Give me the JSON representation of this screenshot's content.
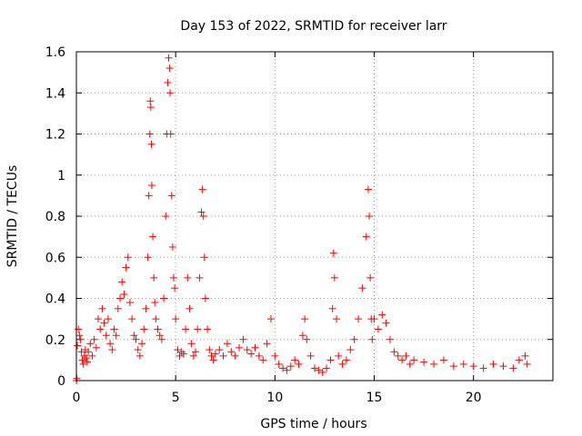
{
  "chart_data": {
    "type": "scatter",
    "title": "Day 153 of 2022, SRMTID for receiver larr",
    "xlabel": "GPS time / hours",
    "ylabel": "SRMTID / TECUs",
    "xlim": [
      0,
      24
    ],
    "ylim": [
      0,
      1.6
    ],
    "x_ticks": [
      0,
      5,
      10,
      15,
      20
    ],
    "y_ticks": [
      0,
      0.2,
      0.4,
      0.6,
      0.8,
      1.0,
      1.2,
      1.4,
      1.6
    ],
    "x_tick_labels": [
      "0",
      "5",
      "10",
      "15",
      "20"
    ],
    "y_tick_labels": [
      "0",
      "0.2",
      "0.4",
      "0.6",
      "0.8",
      "1",
      "1.2",
      "1.4",
      "1.6"
    ],
    "grid": true,
    "marker": "plus",
    "color": "#ff0000",
    "series": [
      {
        "name": "SRMTID",
        "x": [
          0.0,
          0.02,
          0.05,
          0.1,
          0.15,
          0.2,
          0.25,
          0.3,
          0.35,
          0.4,
          0.45,
          0.5,
          0.55,
          0.6,
          0.7,
          0.8,
          0.9,
          1.0,
          1.1,
          1.2,
          1.3,
          1.4,
          1.5,
          1.6,
          1.7,
          1.8,
          1.9,
          2.0,
          2.1,
          2.2,
          2.3,
          2.4,
          2.5,
          2.6,
          2.7,
          2.8,
          2.9,
          3.0,
          3.1,
          3.2,
          3.3,
          3.4,
          3.5,
          3.6,
          3.65,
          3.7,
          3.72,
          3.75,
          3.78,
          3.8,
          3.85,
          3.9,
          3.95,
          4.0,
          4.1,
          4.2,
          4.3,
          4.4,
          4.5,
          4.55,
          4.6,
          4.65,
          4.7,
          4.72,
          4.75,
          4.8,
          4.85,
          4.9,
          4.95,
          5.0,
          5.1,
          5.2,
          5.3,
          5.4,
          5.5,
          5.6,
          5.7,
          5.8,
          5.9,
          6.0,
          6.1,
          6.2,
          6.3,
          6.35,
          6.4,
          6.45,
          6.5,
          6.6,
          6.7,
          6.8,
          6.9,
          7.0,
          7.2,
          7.4,
          7.6,
          7.8,
          8.0,
          8.2,
          8.4,
          8.6,
          8.8,
          9.0,
          9.2,
          9.4,
          9.6,
          9.8,
          10.0,
          10.2,
          10.4,
          10.6,
          10.8,
          11.0,
          11.2,
          11.4,
          11.5,
          11.6,
          11.8,
          12.0,
          12.2,
          12.4,
          12.6,
          12.8,
          12.9,
          12.95,
          13.0,
          13.1,
          13.2,
          13.4,
          13.6,
          13.8,
          14.0,
          14.2,
          14.4,
          14.6,
          14.7,
          14.75,
          14.8,
          14.85,
          14.9,
          15.0,
          15.2,
          15.4,
          15.6,
          15.8,
          16.0,
          16.2,
          16.4,
          16.6,
          16.8,
          17.0,
          17.5,
          18.0,
          18.5,
          19.0,
          19.5,
          20.0,
          20.5,
          21.0,
          21.5,
          22.0,
          22.3,
          22.6,
          22.7
        ],
        "y": [
          0.0,
          0.01,
          0.17,
          0.25,
          0.22,
          0.2,
          0.14,
          0.1,
          0.08,
          0.12,
          0.15,
          0.11,
          0.09,
          0.14,
          0.18,
          0.12,
          0.2,
          0.16,
          0.3,
          0.25,
          0.35,
          0.28,
          0.22,
          0.3,
          0.18,
          0.15,
          0.25,
          0.22,
          0.35,
          0.4,
          0.48,
          0.42,
          0.55,
          0.6,
          0.38,
          0.3,
          0.22,
          0.2,
          0.15,
          0.12,
          0.18,
          0.25,
          0.35,
          0.6,
          0.9,
          1.2,
          1.36,
          1.33,
          1.15,
          0.95,
          0.7,
          0.5,
          0.38,
          0.3,
          0.25,
          0.22,
          0.2,
          0.4,
          0.8,
          1.2,
          1.45,
          1.57,
          1.52,
          1.4,
          1.2,
          0.9,
          0.65,
          0.5,
          0.45,
          0.3,
          0.15,
          0.12,
          0.14,
          0.13,
          0.25,
          0.5,
          0.35,
          0.18,
          0.12,
          0.14,
          0.25,
          0.5,
          0.82,
          0.93,
          0.8,
          0.6,
          0.4,
          0.25,
          0.15,
          0.12,
          0.1,
          0.13,
          0.15,
          0.12,
          0.18,
          0.14,
          0.12,
          0.16,
          0.2,
          0.15,
          0.13,
          0.16,
          0.12,
          0.1,
          0.18,
          0.3,
          0.12,
          0.08,
          0.06,
          0.05,
          0.07,
          0.1,
          0.08,
          0.22,
          0.3,
          0.2,
          0.12,
          0.06,
          0.05,
          0.04,
          0.06,
          0.1,
          0.35,
          0.62,
          0.5,
          0.3,
          0.12,
          0.08,
          0.1,
          0.15,
          0.2,
          0.3,
          0.45,
          0.7,
          0.93,
          0.8,
          0.5,
          0.3,
          0.2,
          0.3,
          0.25,
          0.32,
          0.28,
          0.2,
          0.14,
          0.12,
          0.1,
          0.12,
          0.08,
          0.1,
          0.09,
          0.08,
          0.1,
          0.07,
          0.08,
          0.07,
          0.06,
          0.08,
          0.07,
          0.06,
          0.1,
          0.12,
          0.08
        ]
      }
    ]
  }
}
